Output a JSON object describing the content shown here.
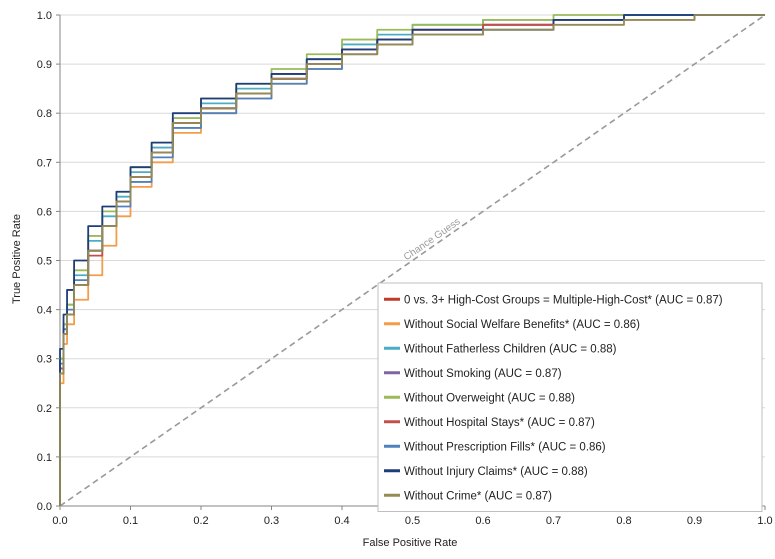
{
  "chart_data": {
    "type": "line",
    "title": "",
    "xlabel": "False Positive Rate",
    "ylabel": "True Positive Rate",
    "xlim": [
      0,
      1
    ],
    "ylim": [
      0,
      1
    ],
    "xticks": [
      "0.0",
      "0.1",
      "0.2",
      "0.3",
      "0.4",
      "0.5",
      "0.6",
      "0.7",
      "0.8",
      "0.9",
      "1.0"
    ],
    "yticks": [
      "0.0",
      "0.1",
      "0.2",
      "0.3",
      "0.4",
      "0.5",
      "0.6",
      "0.7",
      "0.8",
      "0.9",
      "1.0"
    ],
    "grid": "horizontal",
    "legend_position": "bottom-right",
    "annotation": {
      "text": "Chance Guess",
      "x": 0.53,
      "y": 0.53
    },
    "chance_line": {
      "x": [
        0,
        1
      ],
      "y": [
        0,
        1
      ],
      "color": "#999999"
    },
    "series": [
      {
        "name": "0 vs. 3+ High-Cost Groups = Multiple-High-Cost* (AUC = 0.87)",
        "color": "#c0392b",
        "x": [
          0,
          0.005,
          0.01,
          0.02,
          0.04,
          0.06,
          0.08,
          0.1,
          0.13,
          0.16,
          0.2,
          0.25,
          0.3,
          0.35,
          0.4,
          0.45,
          0.5,
          0.6,
          0.7,
          0.8,
          0.9,
          1.0
        ],
        "y": [
          0,
          0.28,
          0.36,
          0.39,
          0.45,
          0.52,
          0.57,
          0.62,
          0.67,
          0.72,
          0.78,
          0.81,
          0.84,
          0.87,
          0.9,
          0.93,
          0.95,
          0.97,
          0.98,
          0.99,
          1.0,
          1.0
        ]
      },
      {
        "name": "Without Social Welfare Benefits* (AUC = 0.86)",
        "color": "#f39c4a",
        "x": [
          0,
          0.005,
          0.01,
          0.02,
          0.04,
          0.06,
          0.08,
          0.1,
          0.13,
          0.16,
          0.2,
          0.25,
          0.3,
          0.35,
          0.4,
          0.45,
          0.5,
          0.6,
          0.7,
          0.8,
          0.9,
          1.0
        ],
        "y": [
          0,
          0.25,
          0.33,
          0.37,
          0.42,
          0.47,
          0.53,
          0.59,
          0.65,
          0.7,
          0.76,
          0.8,
          0.83,
          0.86,
          0.89,
          0.92,
          0.94,
          0.96,
          0.98,
          0.99,
          1.0,
          1.0
        ]
      },
      {
        "name": "Without Fatherless Children (AUC = 0.88)",
        "color": "#4bacc6",
        "x": [
          0,
          0.005,
          0.01,
          0.02,
          0.04,
          0.06,
          0.08,
          0.1,
          0.13,
          0.16,
          0.2,
          0.25,
          0.3,
          0.35,
          0.4,
          0.45,
          0.5,
          0.6,
          0.7,
          0.8,
          0.9,
          1.0
        ],
        "y": [
          0,
          0.3,
          0.37,
          0.41,
          0.47,
          0.54,
          0.59,
          0.63,
          0.68,
          0.73,
          0.79,
          0.82,
          0.85,
          0.88,
          0.91,
          0.94,
          0.96,
          0.98,
          0.99,
          0.99,
          1.0,
          1.0
        ]
      },
      {
        "name": "Without Smoking (AUC = 0.87)",
        "color": "#8064a2",
        "x": [
          0,
          0.005,
          0.01,
          0.02,
          0.04,
          0.06,
          0.08,
          0.1,
          0.13,
          0.16,
          0.2,
          0.25,
          0.3,
          0.35,
          0.4,
          0.45,
          0.5,
          0.6,
          0.7,
          0.8,
          0.9,
          1.0
        ],
        "y": [
          0,
          0.27,
          0.35,
          0.39,
          0.45,
          0.52,
          0.57,
          0.62,
          0.67,
          0.72,
          0.78,
          0.81,
          0.84,
          0.87,
          0.9,
          0.93,
          0.95,
          0.97,
          0.98,
          0.99,
          1.0,
          1.0
        ]
      },
      {
        "name": "Without Overweight (AUC = 0.88)",
        "color": "#9bbb59",
        "x": [
          0,
          0.005,
          0.01,
          0.02,
          0.04,
          0.06,
          0.08,
          0.1,
          0.13,
          0.16,
          0.2,
          0.25,
          0.3,
          0.35,
          0.4,
          0.45,
          0.5,
          0.6,
          0.7,
          0.8,
          0.9,
          1.0
        ],
        "y": [
          0,
          0.3,
          0.37,
          0.41,
          0.48,
          0.55,
          0.6,
          0.64,
          0.69,
          0.74,
          0.79,
          0.83,
          0.86,
          0.89,
          0.92,
          0.95,
          0.97,
          0.98,
          0.99,
          1.0,
          1.0,
          1.0
        ]
      },
      {
        "name": "Without Hospital Stays* (AUC = 0.87)",
        "color": "#c0504d",
        "x": [
          0,
          0.005,
          0.01,
          0.02,
          0.04,
          0.06,
          0.08,
          0.1,
          0.13,
          0.16,
          0.2,
          0.25,
          0.3,
          0.35,
          0.4,
          0.45,
          0.5,
          0.6,
          0.7,
          0.8,
          0.9,
          1.0
        ],
        "y": [
          0,
          0.28,
          0.35,
          0.39,
          0.45,
          0.51,
          0.57,
          0.62,
          0.67,
          0.72,
          0.78,
          0.81,
          0.84,
          0.87,
          0.9,
          0.93,
          0.95,
          0.97,
          0.98,
          0.99,
          0.99,
          1.0
        ]
      },
      {
        "name": "Without Prescription Fills* (AUC = 0.86)",
        "color": "#4f81bd",
        "x": [
          0,
          0.005,
          0.01,
          0.02,
          0.04,
          0.06,
          0.08,
          0.1,
          0.13,
          0.16,
          0.2,
          0.25,
          0.3,
          0.35,
          0.4,
          0.45,
          0.5,
          0.6,
          0.7,
          0.8,
          0.9,
          1.0
        ],
        "y": [
          0,
          0.29,
          0.36,
          0.4,
          0.46,
          0.52,
          0.57,
          0.61,
          0.66,
          0.71,
          0.77,
          0.8,
          0.83,
          0.86,
          0.89,
          0.92,
          0.94,
          0.96,
          0.97,
          0.99,
          1.0,
          1.0
        ]
      },
      {
        "name": "Without Injury Claims* (AUC = 0.88)",
        "color": "#1f3d7a",
        "x": [
          0,
          0.005,
          0.01,
          0.02,
          0.04,
          0.06,
          0.08,
          0.1,
          0.13,
          0.16,
          0.2,
          0.25,
          0.3,
          0.35,
          0.4,
          0.45,
          0.5,
          0.6,
          0.7,
          0.8,
          0.9,
          1.0
        ],
        "y": [
          0,
          0.32,
          0.39,
          0.44,
          0.5,
          0.57,
          0.61,
          0.64,
          0.69,
          0.74,
          0.8,
          0.83,
          0.86,
          0.88,
          0.91,
          0.93,
          0.95,
          0.97,
          0.97,
          0.99,
          1.0,
          1.0
        ]
      },
      {
        "name": "Without Crime* (AUC = 0.87)",
        "color": "#948a54",
        "x": [
          0,
          0.005,
          0.01,
          0.02,
          0.04,
          0.06,
          0.08,
          0.1,
          0.13,
          0.16,
          0.2,
          0.25,
          0.3,
          0.35,
          0.4,
          0.45,
          0.5,
          0.6,
          0.7,
          0.8,
          0.9,
          1.0
        ],
        "y": [
          0,
          0.27,
          0.35,
          0.39,
          0.45,
          0.52,
          0.57,
          0.62,
          0.67,
          0.72,
          0.78,
          0.81,
          0.84,
          0.87,
          0.9,
          0.92,
          0.94,
          0.96,
          0.97,
          0.98,
          0.99,
          1.0
        ]
      }
    ]
  }
}
